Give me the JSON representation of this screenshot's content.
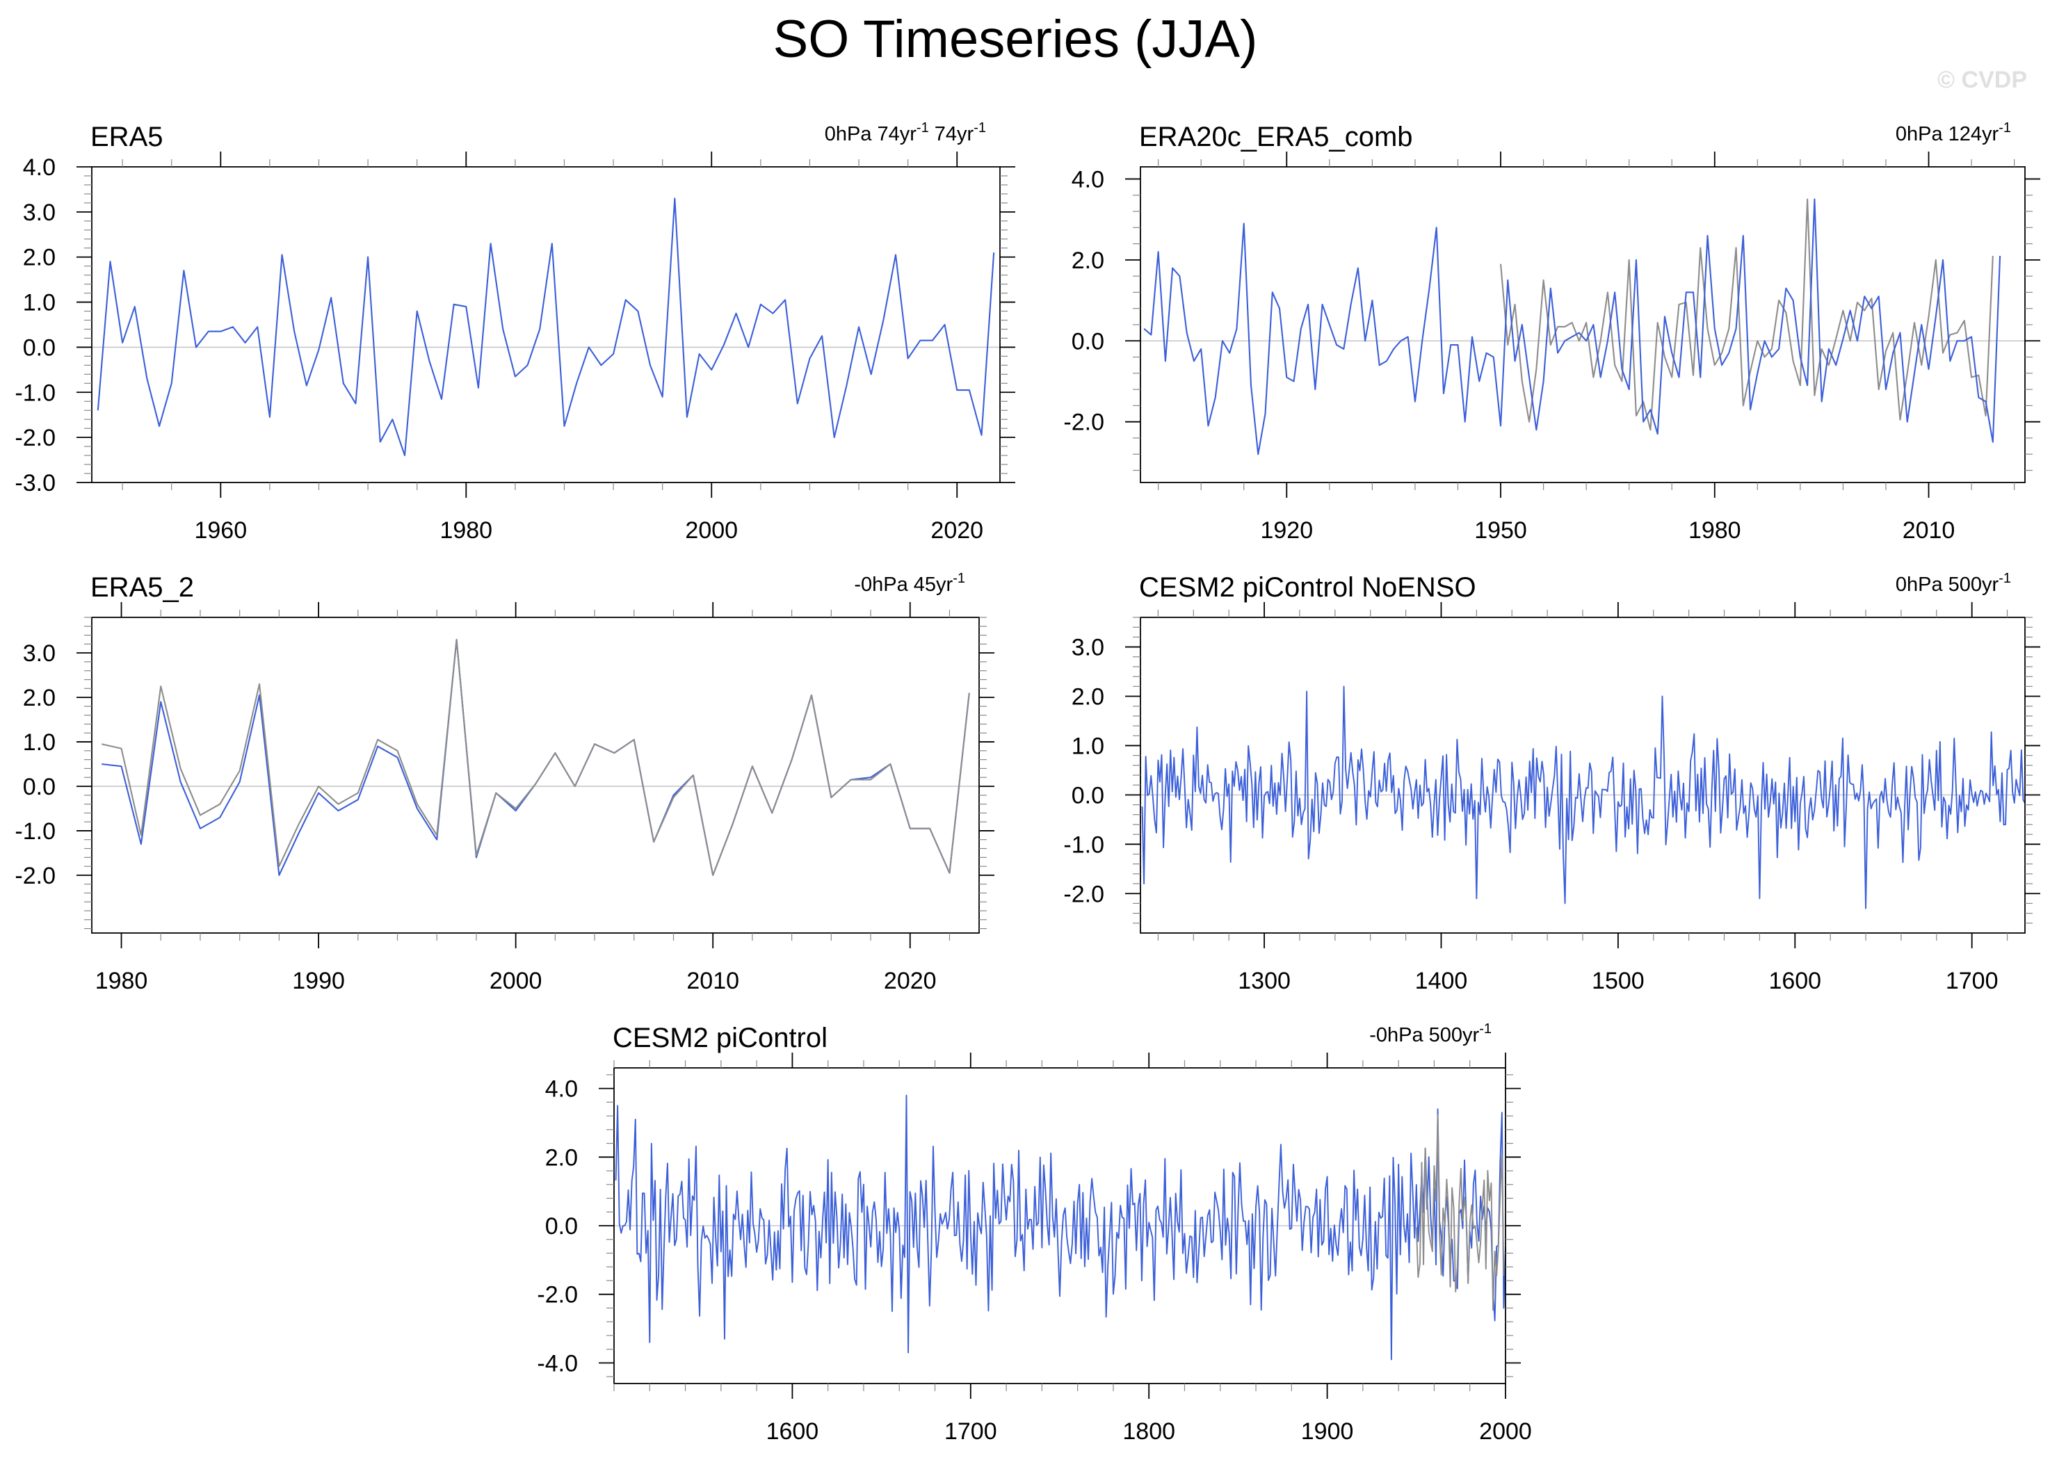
{
  "figure": {
    "title": "SO Timeseries (JJA)",
    "watermark": "© CVDP",
    "colors": {
      "primary": "#3b5fd9",
      "secondary": "#8c8c8c",
      "zero_line": "#c8c8c8",
      "watermark": "#e0e0e0"
    }
  },
  "chart_data": [
    {
      "id": "era5",
      "type": "line",
      "title": "ERA5",
      "annotation": {
        "base": "0hPa 74yr",
        "sup": "-1",
        "base2": " 74yr",
        "sup2": "-1"
      },
      "xlim": [
        1949.5,
        2023.5
      ],
      "ylim": [
        -3,
        4
      ],
      "xticks": [
        1960,
        1980,
        2000,
        2020
      ],
      "yticks": [
        -3.0,
        -2.0,
        -1.0,
        0.0,
        1.0,
        2.0,
        3.0,
        4.0
      ],
      "x_start": 1950,
      "series": [
        {
          "style": "primary",
          "values": [
            -1.4,
            1.9,
            0.1,
            0.9,
            -0.7,
            -1.75,
            -0.8,
            1.7,
            0.0,
            0.35,
            0.35,
            0.45,
            0.1,
            0.45,
            -1.55,
            2.05,
            0.35,
            -0.85,
            -0.05,
            1.1,
            -0.8,
            -1.25,
            2.0,
            -2.1,
            -1.6,
            -2.4,
            0.8,
            -0.3,
            -1.15,
            0.95,
            0.9,
            -0.9,
            2.3,
            0.4,
            -0.65,
            -0.4,
            0.4,
            2.3,
            -1.75,
            -0.8,
            0.0,
            -0.4,
            -0.15,
            1.05,
            0.8,
            -0.4,
            -1.1,
            3.3,
            -1.55,
            -0.15,
            -0.5,
            0.05,
            0.75,
            0.0,
            0.95,
            0.75,
            1.05,
            -1.25,
            -0.25,
            0.25,
            -2.0,
            -0.85,
            0.45,
            -0.6,
            0.6,
            2.05,
            -0.25,
            0.15,
            0.15,
            0.5,
            -0.95,
            -0.95,
            -1.95,
            2.1
          ]
        }
      ]
    },
    {
      "id": "era20c",
      "type": "line",
      "title": "ERA20c_ERA5_comb",
      "annotation": {
        "base": "0hPa 124yr",
        "sup": "-1"
      },
      "xlim": [
        1899.5,
        2023.5
      ],
      "ylim": [
        -3.5,
        4.3
      ],
      "xticks": [
        1920,
        1950,
        1980,
        2010
      ],
      "yticks": [
        -2.0,
        0.0,
        2.0,
        4.0
      ],
      "x_start": 1900,
      "series": [
        {
          "style": "secondary",
          "x_start": 1950,
          "values": [
            1.9,
            -0.1,
            0.9,
            -1.0,
            -2.0,
            -0.7,
            1.5,
            -0.1,
            0.35,
            0.35,
            0.45,
            0.0,
            0.45,
            -0.9,
            0.0,
            1.2,
            -0.6,
            -1.0,
            2.0,
            -1.85,
            -1.5,
            -2.2,
            0.45,
            -0.4,
            -0.9,
            0.9,
            0.95,
            -0.85,
            2.3,
            0.3,
            -0.6,
            -0.3,
            0.3,
            2.3,
            -1.6,
            -0.75,
            0.0,
            -0.4,
            -0.2,
            1.0,
            0.7,
            -0.5,
            -1.1,
            3.5,
            -1.35,
            -0.2,
            -0.6,
            0.05,
            0.75,
            0.0,
            0.95,
            0.75,
            1.05,
            -1.2,
            -0.25,
            0.2,
            -1.95,
            -0.8,
            0.45,
            -0.6,
            0.6,
            2.0,
            -0.3,
            0.15,
            0.2,
            0.5,
            -0.9,
            -0.85,
            -1.85,
            2.1
          ]
        },
        {
          "style": "primary",
          "values": [
            0.3,
            0.15,
            2.2,
            -0.5,
            1.8,
            1.6,
            0.2,
            -0.5,
            -0.2,
            -2.1,
            -1.4,
            0.0,
            -0.3,
            0.3,
            2.9,
            -1.1,
            -2.8,
            -1.8,
            1.2,
            0.8,
            -0.9,
            -1.0,
            0.3,
            0.9,
            -1.2,
            0.9,
            0.4,
            -0.1,
            -0.2,
            0.9,
            1.8,
            0.0,
            1.0,
            -0.6,
            -0.5,
            -0.2,
            0.0,
            0.1,
            -1.5,
            0.0,
            1.3,
            2.8,
            -1.3,
            -0.1,
            -0.1,
            -2.0,
            0.1,
            -1.0,
            -0.3,
            -0.4,
            -2.1,
            1.5,
            -0.5,
            0.4,
            -0.9,
            -2.2,
            -1.0,
            1.3,
            -0.3,
            0.0,
            0.1,
            0.2,
            0.0,
            0.4,
            -0.9,
            0.0,
            1.2,
            -0.7,
            -1.2,
            2.0,
            -2.0,
            -1.7,
            -2.3,
            0.6,
            -0.3,
            -0.9,
            1.2,
            1.2,
            -0.9,
            2.6,
            0.3,
            -0.6,
            -0.3,
            0.3,
            2.6,
            -1.7,
            -0.8,
            0.0,
            -0.4,
            -0.2,
            1.3,
            1.0,
            -0.4,
            -1.1,
            3.5,
            -1.5,
            -0.2,
            -0.6,
            0.05,
            0.75,
            0.0,
            1.1,
            0.8,
            1.1,
            -1.2,
            -0.3,
            0.2,
            -2.0,
            -0.8,
            0.4,
            -0.7,
            0.6,
            2.0,
            -0.5,
            0.0,
            0.0,
            0.1,
            -1.4,
            -1.5,
            -2.5,
            2.1
          ]
        }
      ]
    },
    {
      "id": "era5_2",
      "type": "line",
      "title": "ERA5_2",
      "annotation": {
        "base": "-0hPa 45yr",
        "sup": "-1"
      },
      "xlim": [
        1978.5,
        2023.5
      ],
      "ylim": [
        -3.3,
        3.8
      ],
      "xticks": [
        1980,
        1990,
        2000,
        2010,
        2020
      ],
      "yticks": [
        -2.0,
        -1.0,
        0.0,
        1.0,
        2.0,
        3.0
      ],
      "x_start": 1979,
      "series": [
        {
          "style": "primary",
          "values": [
            0.5,
            0.45,
            -1.3,
            1.9,
            0.1,
            -0.95,
            -0.7,
            0.1,
            2.05,
            -2.0,
            -1.05,
            -0.15,
            -0.55,
            -0.3,
            0.9,
            0.65,
            -0.5,
            -1.2,
            3.3,
            -1.6,
            -0.15,
            -0.55,
            0.05,
            0.75,
            0.0,
            0.95,
            0.75,
            1.05,
            -1.25,
            -0.2,
            0.25,
            -2.0,
            -0.85,
            0.45,
            -0.6,
            0.6,
            2.05,
            -0.25,
            0.15,
            0.2,
            0.5,
            -0.95,
            -0.95,
            -1.95,
            2.1
          ]
        },
        {
          "style": "secondary",
          "values": [
            0.95,
            0.85,
            -1.1,
            2.25,
            0.4,
            -0.65,
            -0.4,
            0.35,
            2.3,
            -1.8,
            -0.85,
            0.0,
            -0.4,
            -0.15,
            1.05,
            0.8,
            -0.4,
            -1.1,
            3.3,
            -1.55,
            -0.15,
            -0.5,
            0.05,
            0.75,
            0.0,
            0.95,
            0.75,
            1.05,
            -1.25,
            -0.25,
            0.25,
            -2.0,
            -0.85,
            0.45,
            -0.6,
            0.6,
            2.05,
            -0.25,
            0.15,
            0.15,
            0.5,
            -0.95,
            -0.95,
            -1.95,
            2.1
          ]
        }
      ]
    },
    {
      "id": "cesm2_noenso",
      "type": "line",
      "title": "CESM2 piControl NoENSO",
      "annotation": {
        "base": "0hPa 500yr",
        "sup": "-1"
      },
      "xlim": [
        1230,
        1730
      ],
      "ylim": [
        -2.8,
        3.6
      ],
      "xticks": [
        1300,
        1400,
        1500,
        1600,
        1700
      ],
      "yticks": [
        -2.0,
        -1.0,
        0.0,
        1.0,
        2.0,
        3.0
      ],
      "generated": {
        "n": 500,
        "x_start": 1231,
        "amplitude": 0.78,
        "seed": 4242,
        "spikes": [
          [
            1324,
            2.1
          ],
          [
            1345,
            2.2
          ],
          [
            1470,
            -2.2
          ],
          [
            1420,
            -2.1
          ],
          [
            1580,
            -2.1
          ],
          [
            1640,
            -2.3
          ],
          [
            1525,
            2.0
          ],
          [
            1232,
            -1.8
          ]
        ]
      },
      "series": [
        {
          "style": "primary"
        }
      ]
    },
    {
      "id": "cesm2",
      "type": "line",
      "title": "CESM2 piControl",
      "annotation": {
        "base": "-0hPa 500yr",
        "sup": "-1"
      },
      "xlim": [
        1500,
        2000
      ],
      "ylim": [
        -4.6,
        4.6
      ],
      "xticks": [
        1600,
        1700,
        1800,
        1900,
        2000
      ],
      "yticks": [
        -4.0,
        -2.0,
        0.0,
        2.0,
        4.0
      ],
      "generated": {
        "n": 500,
        "x_start": 1501,
        "amplitude": 1.55,
        "seed": 777,
        "spikes": [
          [
            1502,
            3.5
          ],
          [
            1512,
            3.1
          ],
          [
            1520,
            -3.4
          ],
          [
            1562,
            -3.3
          ],
          [
            1664,
            3.8
          ],
          [
            1665,
            -3.7
          ],
          [
            1936,
            -3.9
          ],
          [
            1962,
            3.4
          ],
          [
            1998,
            3.3
          ],
          [
            1999,
            -2.4
          ]
        ]
      },
      "overlay": {
        "x_start": 1950,
        "n": 50,
        "seed": 31,
        "amplitude": 1.5
      },
      "series": [
        {
          "style": "primary"
        },
        {
          "style": "secondary"
        }
      ]
    }
  ]
}
